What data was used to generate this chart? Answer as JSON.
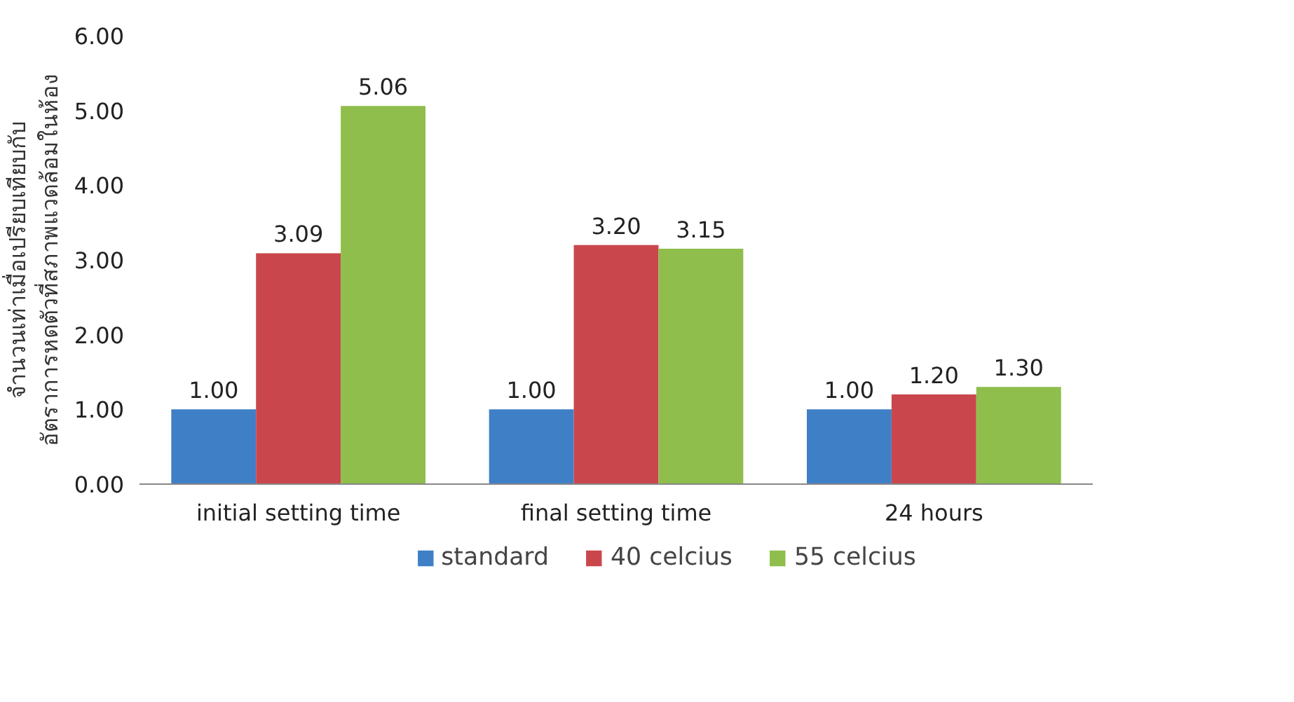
{
  "chart_data": {
    "type": "bar",
    "ylabel": "จำนวนเท่าเมื่อเปรียบเทียบกับ\nอัตราการหดตัวที่สภาพแวดล้อมในห้อง",
    "categories": [
      "initial setting time",
      "final setting time",
      "24 hours"
    ],
    "series": [
      {
        "name": "standard",
        "color": "#3f7fc6",
        "values": [
          1.0,
          1.0,
          1.0
        ],
        "value_labels": [
          "1.00",
          "1.00",
          "1.00"
        ]
      },
      {
        "name": "40 celcius",
        "color": "#c9474c",
        "values": [
          3.09,
          3.2,
          1.2
        ],
        "value_labels": [
          "3.09",
          "3.20",
          "1.20"
        ]
      },
      {
        "name": "55 celcius",
        "color": "#8fbe4c",
        "values": [
          5.06,
          3.15,
          1.3
        ],
        "value_labels": [
          "5.06",
          "3.15",
          "1.30"
        ]
      }
    ],
    "ylim": [
      0,
      6
    ],
    "yticks": [
      {
        "value": 0,
        "label": "0.00"
      },
      {
        "value": 1,
        "label": "1.00"
      },
      {
        "value": 2,
        "label": "2.00"
      },
      {
        "value": 3,
        "label": "3.00"
      },
      {
        "value": 4,
        "label": "4.00"
      },
      {
        "value": 5,
        "label": "5.00"
      },
      {
        "value": 6,
        "label": "6.00"
      }
    ],
    "grid": false,
    "legend": "bottom"
  }
}
